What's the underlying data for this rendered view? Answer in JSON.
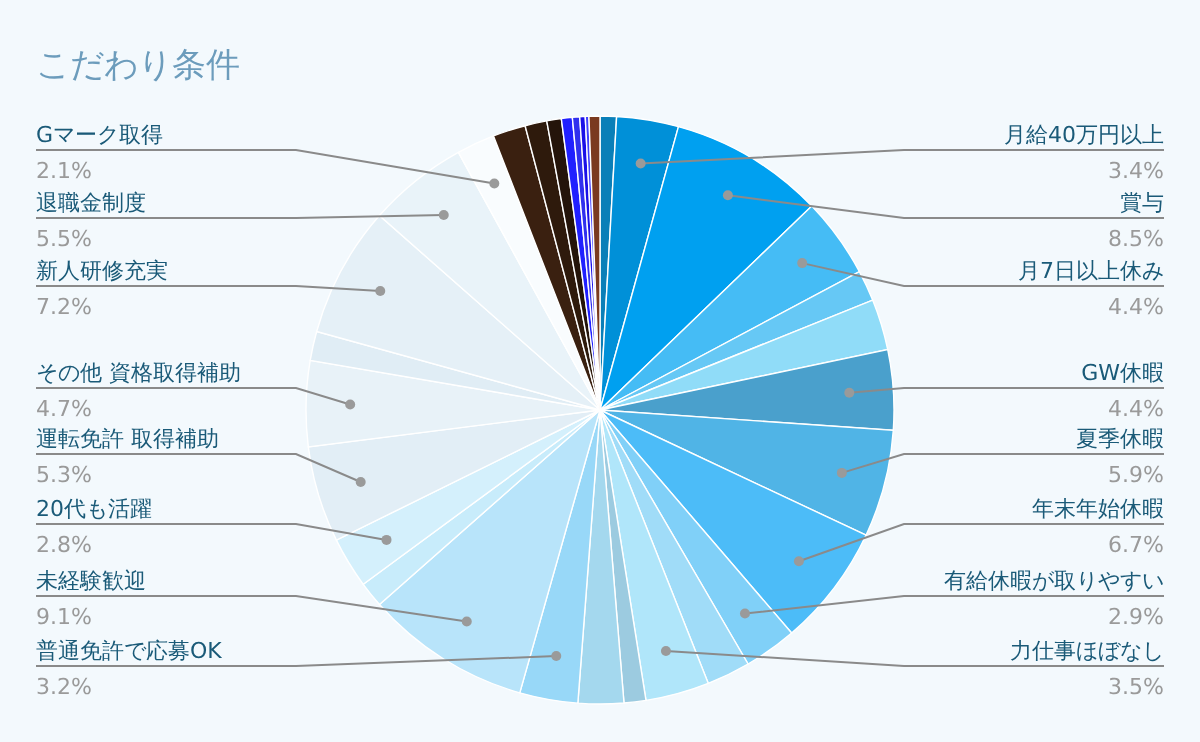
{
  "chart_data": {
    "type": "pie",
    "title": "こだわり条件",
    "categories": [
      null,
      "月給40万円以上",
      "賞与",
      "月7日以上休み",
      null,
      null,
      "GW休暇",
      "夏季休暇",
      "年末年始休暇",
      "有給休暇が取りやすい",
      null,
      "力仕事ほぼなし",
      null,
      null,
      "普通免許で応募OK",
      "未経験歓迎",
      null,
      "20代も活躍",
      "運転免許 取得補助",
      "その他 資格取得補助",
      null,
      "新人研修充実",
      "退職金制度",
      "Gマーク取得",
      null,
      null,
      null,
      null,
      null,
      null,
      null,
      null
    ],
    "values": [
      0.9,
      3.4,
      8.5,
      4.4,
      1.7,
      2.8,
      4.4,
      5.9,
      6.7,
      2.9,
      2.4,
      3.5,
      1.2,
      2.5,
      3.2,
      9.1,
      1.4,
      2.8,
      5.3,
      4.7,
      1.6,
      7.2,
      5.5,
      2.1,
      1.8,
      1.2,
      0.8,
      0.6,
      0.4,
      0.3,
      0.2,
      0.6
    ],
    "value_labels": [
      null,
      "3.4%",
      "8.5%",
      "4.4%",
      null,
      null,
      "4.4%",
      "5.9%",
      "6.7%",
      "2.9%",
      null,
      "3.5%",
      null,
      null,
      "3.2%",
      "9.1%",
      null,
      "2.8%",
      "5.3%",
      "4.7%",
      null,
      "7.2%",
      "5.5%",
      "2.1%",
      null,
      null,
      null,
      null,
      null,
      null,
      null,
      null
    ],
    "colors": [
      "#0a7fb8",
      "#0090d8",
      "#00a0f0",
      "#45bcf5",
      "#66c8f5",
      "#90dcf8",
      "#4aa0cc",
      "#50b4e6",
      "#4cbcf8",
      "#80d0f8",
      "#a0dcf8",
      "#b0e6fa",
      "#9ccbe0",
      "#a4d8ee",
      "#98d8f8",
      "#b8e4fa",
      "#c8ecfb",
      "#d4f0fc",
      "#e2eef6",
      "#e8f2f8",
      "#e0edf5",
      "#e5f0f7",
      "#e9f3f9",
      "#f9fcfe",
      "#3a2010",
      "#2e1a0c",
      "#24140a",
      "#2020ff",
      "#3030ee",
      "#1a10e8",
      "#4040ff",
      "#7a3a20"
    ]
  }
}
